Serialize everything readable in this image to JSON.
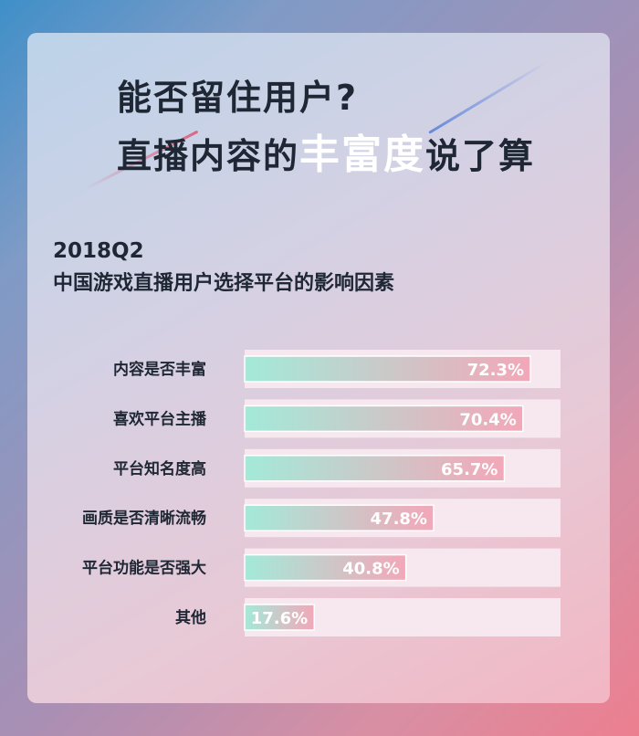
{
  "headline": {
    "line1": "能否留住用户?",
    "line2_before": "直播内容的",
    "line2_highlight": "丰富度",
    "line2_after": "说了算"
  },
  "subtitle": {
    "line1": "2018Q2",
    "line2": "中国游戏直播用户选择平台的影响因素"
  },
  "colors": {
    "bar_start": "#a3ead9",
    "bar_end": "#f3a7b8",
    "track": "#f6e8ee",
    "text_dark": "#1e2733"
  },
  "chart_data": {
    "type": "bar",
    "orientation": "horizontal",
    "categories": [
      "内容是否丰富",
      "喜欢平台主播",
      "平台知名度高",
      "画质是否清晰流畅",
      "平台功能是否强大",
      "其他"
    ],
    "values": [
      72.3,
      70.4,
      65.7,
      47.8,
      40.8,
      17.6
    ],
    "value_labels": [
      "72.3%",
      "70.4%",
      "65.7%",
      "47.8%",
      "40.8%",
      "17.6%"
    ],
    "unit": "%",
    "xlim": [
      0,
      100
    ],
    "title": "",
    "xlabel": "",
    "ylabel": "",
    "grid": false,
    "legend": "none"
  }
}
